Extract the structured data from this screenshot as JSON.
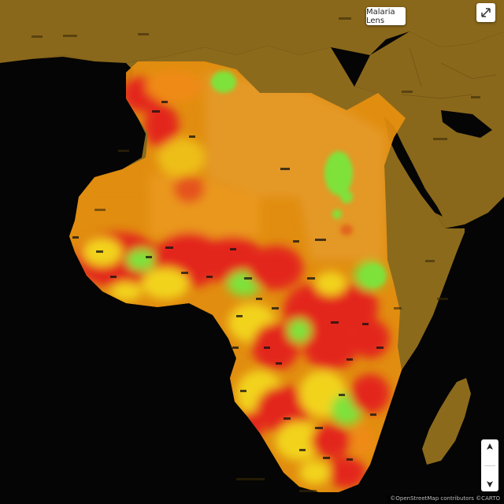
{
  "map": {
    "layer_button_label": "Malaria Lens",
    "attribution": "©OpenStreetMap contributors ©CARTO",
    "colors": {
      "ocean": "#050505",
      "land": "#8c6a1c",
      "overlay_base": "#e8900f",
      "high": "#e3261a",
      "mid": "#f08a12",
      "low": "#f2d31e",
      "very_low": "#7ee23a"
    },
    "icons": [
      "expand-icon",
      "zoom-in-icon",
      "zoom-out-icon"
    ]
  }
}
